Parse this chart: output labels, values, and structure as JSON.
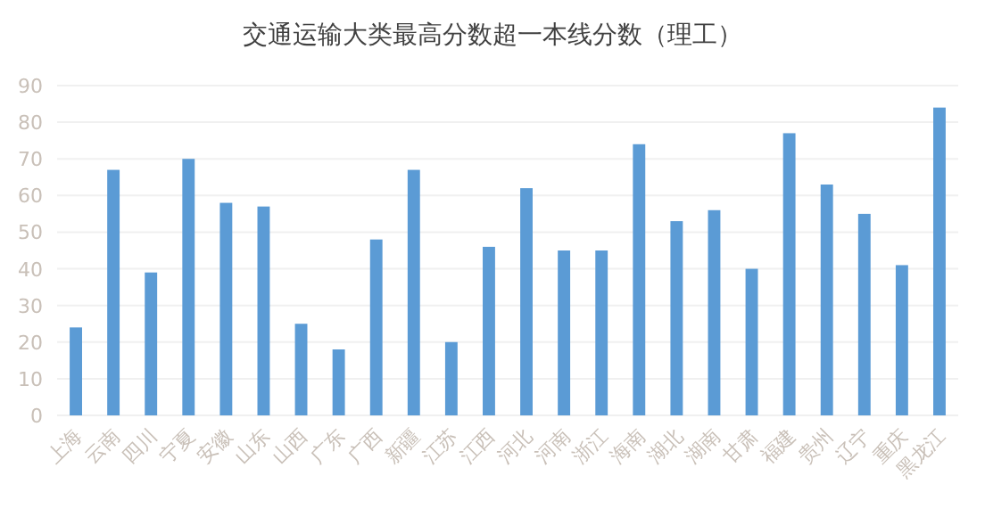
{
  "chart_data": {
    "type": "bar",
    "title": "交通运输大类最高分数超一本线分数（理工）",
    "categories": [
      "上海",
      "云南",
      "四川",
      "宁夏",
      "安徽",
      "山东",
      "山西",
      "广东",
      "广西",
      "新疆",
      "江苏",
      "江西",
      "河北",
      "河南",
      "浙江",
      "海南",
      "湖北",
      "湖南",
      "甘肃",
      "福建",
      "贵州",
      "辽宁",
      "重庆",
      "黑龙江"
    ],
    "values": [
      24,
      67,
      39,
      70,
      58,
      57,
      25,
      18,
      48,
      67,
      20,
      46,
      62,
      45,
      45,
      74,
      53,
      56,
      40,
      77,
      63,
      55,
      41,
      84
    ],
    "color": "#5b9bd5",
    "ylim": [
      0,
      90
    ],
    "yticks": [
      0,
      10,
      20,
      30,
      40,
      50,
      60,
      70,
      80,
      90
    ],
    "grid": "y"
  }
}
